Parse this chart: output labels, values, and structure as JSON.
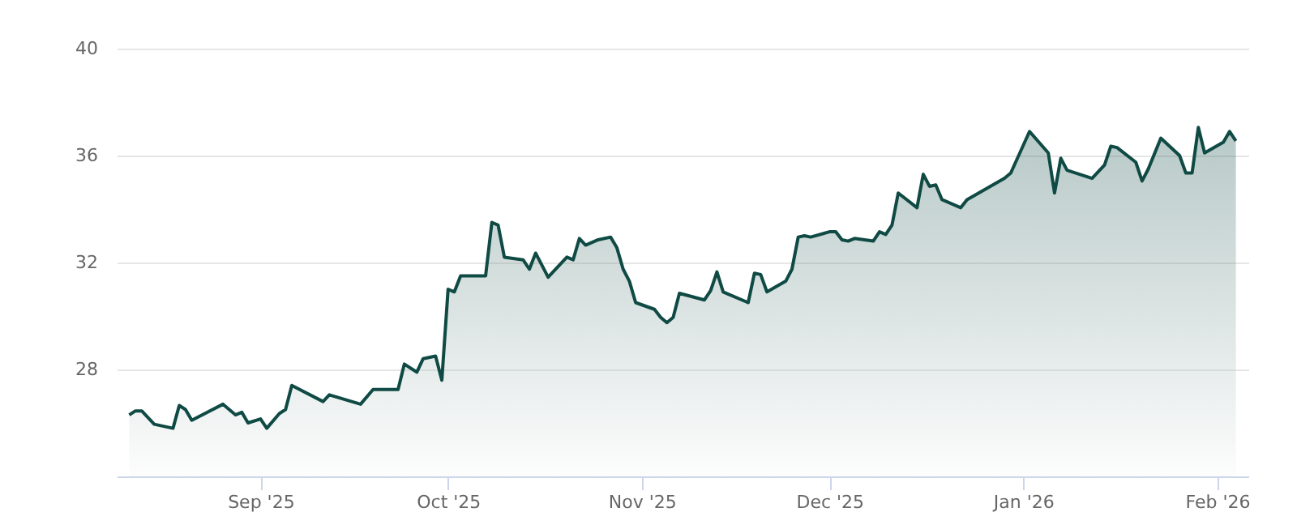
{
  "chart_data": {
    "type": "area",
    "x": [
      "2025-08-11",
      "2025-08-12",
      "2025-08-13",
      "2025-08-15",
      "2025-08-18",
      "2025-08-19",
      "2025-08-20",
      "2025-08-21",
      "2025-08-26",
      "2025-08-28",
      "2025-08-29",
      "2025-08-30",
      "2025-09-01",
      "2025-09-02",
      "2025-09-04",
      "2025-09-05",
      "2025-09-06",
      "2025-09-11",
      "2025-09-12",
      "2025-09-17",
      "2025-09-19",
      "2025-09-23",
      "2025-09-24",
      "2025-09-26",
      "2025-09-27",
      "2025-09-29",
      "2025-09-30",
      "2025-10-01",
      "2025-10-02",
      "2025-10-03",
      "2025-10-07",
      "2025-10-08",
      "2025-10-09",
      "2025-10-10",
      "2025-10-13",
      "2025-10-14",
      "2025-10-15",
      "2025-10-17",
      "2025-10-20",
      "2025-10-21",
      "2025-10-22",
      "2025-10-23",
      "2025-10-25",
      "2025-10-27",
      "2025-10-28",
      "2025-10-29",
      "2025-10-30",
      "2025-10-31",
      "2025-11-03",
      "2025-11-04",
      "2025-11-05",
      "2025-11-06",
      "2025-11-07",
      "2025-11-11",
      "2025-11-12",
      "2025-11-13",
      "2025-11-14",
      "2025-11-18",
      "2025-11-19",
      "2025-11-20",
      "2025-11-21",
      "2025-11-24",
      "2025-11-25",
      "2025-11-26",
      "2025-11-27",
      "2025-11-28",
      "2025-12-01",
      "2025-12-02",
      "2025-12-03",
      "2025-12-04",
      "2025-12-05",
      "2025-12-08",
      "2025-12-09",
      "2025-12-10",
      "2025-12-11",
      "2025-12-12",
      "2025-12-15",
      "2025-12-16",
      "2025-12-17",
      "2025-12-18",
      "2025-12-19",
      "2025-12-22",
      "2025-12-23",
      "2025-12-29",
      "2025-12-30",
      "2026-01-02",
      "2026-01-05",
      "2026-01-06",
      "2026-01-07",
      "2026-01-08",
      "2026-01-12",
      "2026-01-14",
      "2026-01-15",
      "2026-01-16",
      "2026-01-19",
      "2026-01-20",
      "2026-01-21",
      "2026-01-23",
      "2026-01-26",
      "2026-01-27",
      "2026-01-28",
      "2026-01-29",
      "2026-01-30",
      "2026-02-02",
      "2026-02-03",
      "2026-02-04"
    ],
    "series": [
      {
        "color": "#0f4a44",
        "values": [
          26.3,
          26.45,
          26.45,
          25.95,
          25.8,
          26.65,
          26.5,
          26.1,
          26.7,
          26.3,
          26.4,
          26.0,
          26.15,
          25.8,
          26.35,
          26.5,
          27.4,
          26.8,
          27.05,
          26.7,
          27.25,
          27.25,
          28.2,
          27.9,
          28.4,
          28.5,
          27.6,
          31.0,
          30.9,
          31.5,
          31.5,
          33.5,
          33.4,
          32.2,
          32.1,
          31.75,
          32.35,
          31.45,
          32.2,
          32.1,
          32.9,
          32.65,
          32.85,
          32.95,
          32.55,
          31.75,
          31.3,
          30.5,
          30.25,
          29.95,
          29.75,
          29.95,
          30.85,
          30.6,
          30.95,
          31.65,
          30.9,
          30.5,
          31.6,
          31.55,
          30.9,
          31.3,
          31.75,
          32.95,
          33.0,
          32.95,
          33.15,
          33.15,
          32.85,
          32.8,
          32.9,
          32.8,
          33.15,
          33.05,
          33.4,
          34.6,
          34.05,
          35.3,
          34.85,
          34.9,
          34.35,
          34.05,
          34.35,
          35.15,
          35.35,
          36.9,
          36.1,
          34.6,
          35.9,
          35.45,
          35.15,
          35.65,
          36.35,
          36.3,
          35.75,
          35.05,
          35.5,
          36.65,
          36.0,
          35.35,
          35.35,
          37.05,
          36.1,
          36.5,
          36.9,
          36.55
        ]
      }
    ],
    "xlim": [
      "2025-08-09",
      "2026-02-06"
    ],
    "xticks": [
      {
        "value": "2025-09-01",
        "label": "Sep '25"
      },
      {
        "value": "2025-10-01",
        "label": "Oct '25"
      },
      {
        "value": "2025-11-01",
        "label": "Nov '25"
      },
      {
        "value": "2025-12-01",
        "label": "Dec '25"
      },
      {
        "value": "2026-01-01",
        "label": "Jan '26"
      },
      {
        "value": "2026-02-01",
        "label": "Feb '26"
      }
    ],
    "ylim": [
      24,
      40
    ],
    "yticks": [
      28,
      32,
      36,
      40
    ],
    "grid": "y",
    "legend": false
  }
}
